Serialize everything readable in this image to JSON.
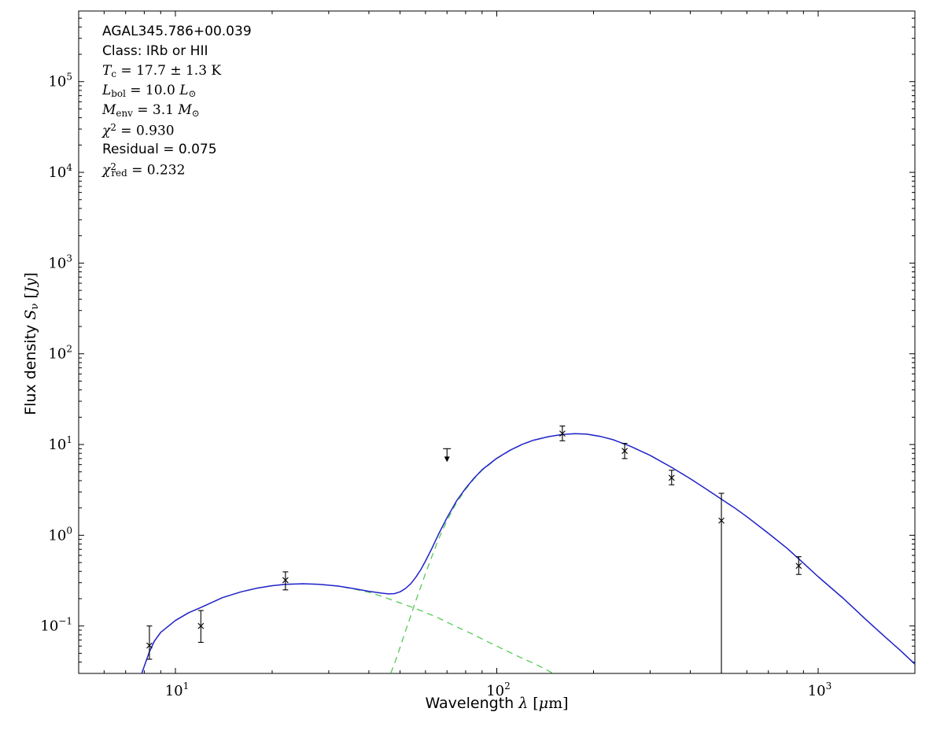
{
  "figure": {
    "background": "#ffffff",
    "frame_color": "#000000"
  },
  "annotation": {
    "lines": [
      {
        "text": "AGAL345.786+00.039",
        "parts": [
          [
            "AGAL345.786+00.039",
            "sans"
          ]
        ]
      },
      {
        "text": "Class: IRb or HII",
        "parts": [
          [
            "Class: IRb or HII",
            "sans"
          ]
        ]
      },
      {
        "text": "T_c = 17.7 ± 1.3 K",
        "parts": [
          [
            "T",
            "mit"
          ],
          [
            "c",
            "msub"
          ],
          [
            " = 17.7 ± 1.3 K",
            "m"
          ]
        ]
      },
      {
        "text": "L_bol = 10.0 L_⊙",
        "parts": [
          [
            "L",
            "mit"
          ],
          [
            "bol",
            "msub"
          ],
          [
            " = 10.0 ",
            "m"
          ],
          [
            "L",
            "mit"
          ],
          [
            "⊙",
            "msub"
          ]
        ]
      },
      {
        "text": "M_env = 3.1 M_⊙",
        "parts": [
          [
            "M",
            "mit"
          ],
          [
            "env",
            "msub"
          ],
          [
            " = 3.1 ",
            "m"
          ],
          [
            "M",
            "mit"
          ],
          [
            "⊙",
            "msub"
          ]
        ]
      },
      {
        "text": "χ² = 0.930",
        "parts": [
          [
            "χ",
            "mit"
          ],
          [
            "2",
            "msup"
          ],
          [
            " = 0.930",
            "m"
          ]
        ]
      },
      {
        "text": "Residual = 0.075",
        "parts": [
          [
            "Residual = 0.075",
            "sans"
          ]
        ]
      },
      {
        "text": "χ²_red = 0.232",
        "parts": [
          [
            "χ",
            "mit"
          ],
          [
            "2",
            "msup"
          ],
          [
            "red",
            "msubt"
          ],
          [
            " = 0.232",
            "m"
          ]
        ]
      }
    ]
  },
  "chart_data": {
    "type": "line",
    "title": "",
    "xlabel": "Wavelength λ [μm]",
    "ylabel": "Flux density S_ν [Jy]",
    "xlabel_parts": [
      [
        "Wavelength ",
        "sans"
      ],
      [
        "λ",
        "mit"
      ],
      [
        " [",
        "m"
      ],
      [
        "μ",
        "mit"
      ],
      [
        "m",
        "m"
      ],
      [
        "]",
        "m"
      ]
    ],
    "ylabel_parts": [
      [
        "Flux density ",
        "sans"
      ],
      [
        "S",
        "mit"
      ],
      [
        "ν",
        "msub"
      ],
      [
        " [",
        "m"
      ],
      [
        "Jy",
        "mit"
      ],
      [
        "]",
        "m"
      ]
    ],
    "xscale": "log",
    "yscale": "log",
    "xlim": [
      5,
      2000
    ],
    "ylim": [
      0.03,
      600000
    ],
    "x_tick_exponents": [
      1,
      2,
      3
    ],
    "y_tick_exponents": [
      -1,
      0,
      1,
      2,
      3,
      4,
      5
    ],
    "grid": false,
    "legend": false,
    "data_marker": "x",
    "colors": {
      "model_total": "#2222cc",
      "components": "#55c955",
      "data": "#000000"
    },
    "series": [
      {
        "id": "warm-component-curve",
        "name": "warm component (dashed)",
        "color": "#55c955",
        "style": "dashed",
        "width": 1.3,
        "points": [
          [
            7.8,
            0.028
          ],
          [
            8,
            0.036
          ],
          [
            8.3,
            0.052
          ],
          [
            8.6,
            0.068
          ],
          [
            9,
            0.085
          ],
          [
            10,
            0.115
          ],
          [
            11,
            0.14
          ],
          [
            12,
            0.16
          ],
          [
            14,
            0.205
          ],
          [
            16,
            0.238
          ],
          [
            18,
            0.262
          ],
          [
            20,
            0.278
          ],
          [
            22,
            0.288
          ],
          [
            25,
            0.292
          ],
          [
            28,
            0.288
          ],
          [
            32,
            0.275
          ],
          [
            36,
            0.255
          ],
          [
            40,
            0.235
          ],
          [
            44,
            0.212
          ],
          [
            46,
            0.2
          ],
          [
            48,
            0.189
          ],
          [
            50,
            0.18
          ],
          [
            52,
            0.171
          ],
          [
            54,
            0.163
          ],
          [
            56,
            0.155
          ],
          [
            58,
            0.148
          ],
          [
            60,
            0.14
          ],
          [
            63,
            0.131
          ],
          [
            66,
            0.122
          ],
          [
            70,
            0.11
          ],
          [
            75,
            0.098
          ],
          [
            80,
            0.088
          ],
          [
            85,
            0.08
          ],
          [
            90,
            0.072
          ],
          [
            100,
            0.06
          ],
          [
            110,
            0.051
          ],
          [
            120,
            0.044
          ],
          [
            130,
            0.039
          ],
          [
            145,
            0.032
          ],
          [
            160,
            0.026
          ],
          [
            170,
            0.023
          ]
        ]
      },
      {
        "id": "cold-component-curve",
        "name": "cold greybody component (dashed)",
        "color": "#55c955",
        "style": "dashed",
        "width": 1.3,
        "points": [
          [
            44,
            0.018
          ],
          [
            46,
            0.026
          ],
          [
            48,
            0.038
          ],
          [
            50,
            0.058
          ],
          [
            52,
            0.088
          ],
          [
            54,
            0.13
          ],
          [
            56,
            0.19
          ],
          [
            58,
            0.27
          ],
          [
            60,
            0.38
          ],
          [
            63,
            0.6
          ],
          [
            66,
            0.92
          ],
          [
            70,
            1.45
          ],
          [
            75,
            2.3
          ],
          [
            80,
            3.2
          ],
          [
            85,
            4.2
          ],
          [
            90,
            5.2
          ],
          [
            100,
            7.0
          ],
          [
            110,
            8.6
          ],
          [
            120,
            10.0
          ],
          [
            130,
            11.1
          ],
          [
            145,
            12.2
          ],
          [
            160,
            12.9
          ],
          [
            175,
            13.15
          ],
          [
            190,
            13.0
          ],
          [
            210,
            12.3
          ],
          [
            230,
            11.3
          ],
          [
            260,
            9.6
          ],
          [
            300,
            7.6
          ],
          [
            350,
            5.6
          ],
          [
            400,
            4.2
          ],
          [
            450,
            3.2
          ],
          [
            500,
            2.5
          ],
          [
            550,
            2.0
          ],
          [
            600,
            1.6
          ],
          [
            700,
            1.05
          ],
          [
            800,
            0.72
          ],
          [
            870,
            0.55
          ],
          [
            1000,
            0.35
          ],
          [
            1200,
            0.2
          ],
          [
            1400,
            0.12
          ],
          [
            1600,
            0.078
          ],
          [
            1800,
            0.054
          ],
          [
            2000,
            0.038
          ]
        ]
      },
      {
        "id": "model-total-curve",
        "name": "total model fit (solid)",
        "color": "#2222cc",
        "style": "solid",
        "width": 1.5,
        "points": [
          [
            7.8,
            0.028
          ],
          [
            8,
            0.036
          ],
          [
            8.3,
            0.052
          ],
          [
            8.6,
            0.068
          ],
          [
            9,
            0.085
          ],
          [
            10,
            0.115
          ],
          [
            11,
            0.14
          ],
          [
            12,
            0.16
          ],
          [
            14,
            0.205
          ],
          [
            16,
            0.238
          ],
          [
            18,
            0.262
          ],
          [
            20,
            0.278
          ],
          [
            22,
            0.288
          ],
          [
            25,
            0.292
          ],
          [
            28,
            0.288
          ],
          [
            32,
            0.276
          ],
          [
            36,
            0.258
          ],
          [
            40,
            0.241
          ],
          [
            44,
            0.23
          ],
          [
            46,
            0.226
          ],
          [
            48,
            0.227
          ],
          [
            50,
            0.238
          ],
          [
            52,
            0.259
          ],
          [
            54,
            0.293
          ],
          [
            56,
            0.345
          ],
          [
            58,
            0.418
          ],
          [
            60,
            0.52
          ],
          [
            63,
            0.73
          ],
          [
            66,
            1.04
          ],
          [
            70,
            1.56
          ],
          [
            75,
            2.4
          ],
          [
            80,
            3.29
          ],
          [
            85,
            4.28
          ],
          [
            90,
            5.27
          ],
          [
            100,
            7.06
          ],
          [
            110,
            8.65
          ],
          [
            120,
            10.04
          ],
          [
            130,
            11.14
          ],
          [
            145,
            12.23
          ],
          [
            160,
            12.93
          ],
          [
            175,
            13.17
          ],
          [
            190,
            13.02
          ],
          [
            210,
            12.3
          ],
          [
            230,
            11.3
          ],
          [
            260,
            9.6
          ],
          [
            300,
            7.6
          ],
          [
            350,
            5.6
          ],
          [
            400,
            4.2
          ],
          [
            450,
            3.2
          ],
          [
            500,
            2.5
          ],
          [
            550,
            2.0
          ],
          [
            600,
            1.6
          ],
          [
            700,
            1.05
          ],
          [
            800,
            0.72
          ],
          [
            870,
            0.55
          ],
          [
            1000,
            0.35
          ],
          [
            1200,
            0.2
          ],
          [
            1400,
            0.12
          ],
          [
            1600,
            0.078
          ],
          [
            1800,
            0.054
          ],
          [
            2000,
            0.038
          ]
        ]
      }
    ],
    "data_points": [
      {
        "wavelength": 8.3,
        "flux": 0.061,
        "flux_lo": 0.043,
        "flux_hi": 0.1,
        "kind": "detection"
      },
      {
        "wavelength": 12,
        "flux": 0.1,
        "flux_lo": 0.066,
        "flux_hi": 0.148,
        "kind": "detection"
      },
      {
        "wavelength": 22,
        "flux": 0.32,
        "flux_lo": 0.25,
        "flux_hi": 0.395,
        "kind": "detection"
      },
      {
        "wavelength": 70,
        "flux": 9.0,
        "kind": "upper_limit"
      },
      {
        "wavelength": 160,
        "flux": 13.2,
        "flux_lo": 11.0,
        "flux_hi": 16.0,
        "kind": "detection"
      },
      {
        "wavelength": 250,
        "flux": 8.5,
        "flux_lo": 7.0,
        "flux_hi": 10.3,
        "kind": "detection"
      },
      {
        "wavelength": 350,
        "flux": 4.3,
        "flux_lo": 3.6,
        "flux_hi": 5.2,
        "kind": "detection"
      },
      {
        "wavelength": 500,
        "flux": 1.45,
        "flux_lo": 0.028,
        "flux_hi": 2.9,
        "kind": "detection"
      },
      {
        "wavelength": 870,
        "flux": 0.46,
        "flux_lo": 0.37,
        "flux_hi": 0.58,
        "kind": "detection"
      }
    ]
  }
}
